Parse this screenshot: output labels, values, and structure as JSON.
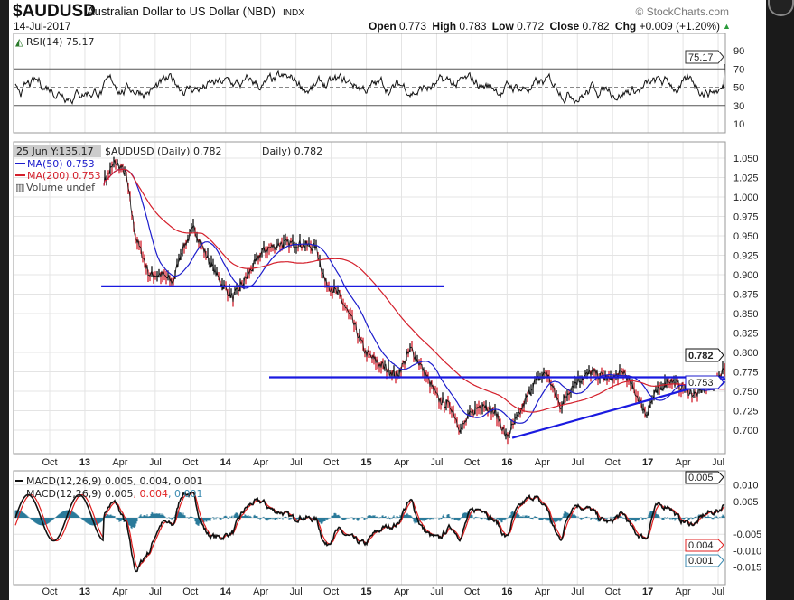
{
  "header": {
    "symbol": "$AUDUSD",
    "name": "Australian Dollar to US Dollar (NBD)",
    "exchange": "INDX",
    "date": "14-Jul-2017",
    "watermark": "© StockCharts.com",
    "open_label": "Open",
    "open": "0.773",
    "high_label": "High",
    "high": "0.783",
    "low_label": "Low",
    "low": "0.772",
    "close_label": "Close",
    "close": "0.782",
    "chg_label": "Chg",
    "chg": "+0.009 (+1.20%)",
    "up_arrow": "▲"
  },
  "colors": {
    "ma50": "#1c1ccc",
    "ma200": "#d4202c",
    "signal": "#e02020",
    "hist": "#2a7a9a",
    "trend": "#1a1ae0"
  },
  "chart_data": [
    {
      "type": "line",
      "title": "RSI(14) 75.17",
      "legend": "RSI(14) 75.17",
      "ylim": [
        0,
        100
      ],
      "ytick_labels": [
        "90",
        "70",
        "50",
        "30",
        "10"
      ],
      "last_value": "75.17",
      "reference_lines": [
        70,
        50,
        30
      ]
    },
    {
      "type": "line",
      "title": "$AUDUSD (Daily) 0.782",
      "tooltip": "25 Jun Y:135.17",
      "daily_label": "Daily) 0.782",
      "legend": [
        "MA(50) 0.753",
        "MA(200) 0.753",
        "Volume undef"
      ],
      "ylim": [
        0.685,
        1.06
      ],
      "ytick_labels": [
        "1.050",
        "1.025",
        "1.000",
        "0.975",
        "0.950",
        "0.925",
        "0.900",
        "0.875",
        "0.850",
        "0.825",
        "0.800",
        "0.775",
        "0.750",
        "0.725",
        "0.700"
      ],
      "last_price_tag": "0.782",
      "ma_tag": "0.753",
      "x_unit": "months since Jan 2013",
      "price_anchors": [
        [
          1.9,
          1.02
        ],
        [
          2.9,
          1.045
        ],
        [
          3.8,
          1.03
        ],
        [
          4.6,
          0.95
        ],
        [
          5.8,
          0.9
        ],
        [
          6.9,
          0.9
        ],
        [
          7.8,
          0.89
        ],
        [
          8.5,
          0.93
        ],
        [
          9.6,
          0.96
        ],
        [
          10.8,
          0.92
        ],
        [
          11.9,
          0.89
        ],
        [
          12.9,
          0.87
        ],
        [
          13.8,
          0.89
        ],
        [
          15.4,
          0.93
        ],
        [
          16.9,
          0.94
        ],
        [
          18.5,
          0.94
        ],
        [
          20,
          0.935
        ],
        [
          20.8,
          0.89
        ],
        [
          21.9,
          0.875
        ],
        [
          23.1,
          0.84
        ],
        [
          24.2,
          0.8
        ],
        [
          25.4,
          0.785
        ],
        [
          26.9,
          0.77
        ],
        [
          28.1,
          0.805
        ],
        [
          29.2,
          0.775
        ],
        [
          30.4,
          0.74
        ],
        [
          31.5,
          0.73
        ],
        [
          32.3,
          0.7
        ],
        [
          33.1,
          0.72
        ],
        [
          34.2,
          0.735
        ],
        [
          35.4,
          0.72
        ],
        [
          36.2,
          0.69
        ],
        [
          37.3,
          0.72
        ],
        [
          38.5,
          0.76
        ],
        [
          39.6,
          0.775
        ],
        [
          40.8,
          0.73
        ],
        [
          41.9,
          0.76
        ],
        [
          43.5,
          0.775
        ],
        [
          45,
          0.765
        ],
        [
          46.2,
          0.775
        ],
        [
          47.3,
          0.745
        ],
        [
          48.1,
          0.72
        ],
        [
          48.8,
          0.745
        ],
        [
          50,
          0.765
        ],
        [
          51.2,
          0.755
        ],
        [
          52.3,
          0.745
        ],
        [
          53.1,
          0.755
        ],
        [
          54.2,
          0.765
        ],
        [
          54.8,
          0.782
        ]
      ],
      "annotations": {
        "support_line_1": {
          "price": 0.885,
          "from_month": 1.7,
          "to_month": 30.9
        },
        "resistance_line": {
          "price": 0.768,
          "from_month": 16,
          "to_month": 54.8
        },
        "trend_line": {
          "from": [
            36.7,
            0.69
          ],
          "to": [
            55.4,
            0.766
          ]
        }
      }
    },
    {
      "type": "line",
      "title": "MACD(12,26,9) 0.005, 0.004, 0.001",
      "legend_main": "MACD(12,26,9) 0.005",
      "legend_signal": ", 0.004",
      "legend_hist": ", 0.001",
      "ylim": [
        -0.018,
        0.013
      ],
      "ytick_labels": [
        "0.010",
        "0.005",
        "0.000",
        "-0.005",
        "-0.010",
        "-0.015"
      ],
      "tags": [
        "0.005",
        "0.004",
        "0.001"
      ]
    }
  ],
  "xaxis": {
    "labels": [
      "Oct",
      "13",
      "Apr",
      "Jul",
      "Oct",
      "14",
      "Apr",
      "Jul",
      "Oct",
      "15",
      "Apr",
      "Jul",
      "Oct",
      "16",
      "Apr",
      "Jul",
      "Oct",
      "17",
      "Apr",
      "Jul"
    ]
  }
}
